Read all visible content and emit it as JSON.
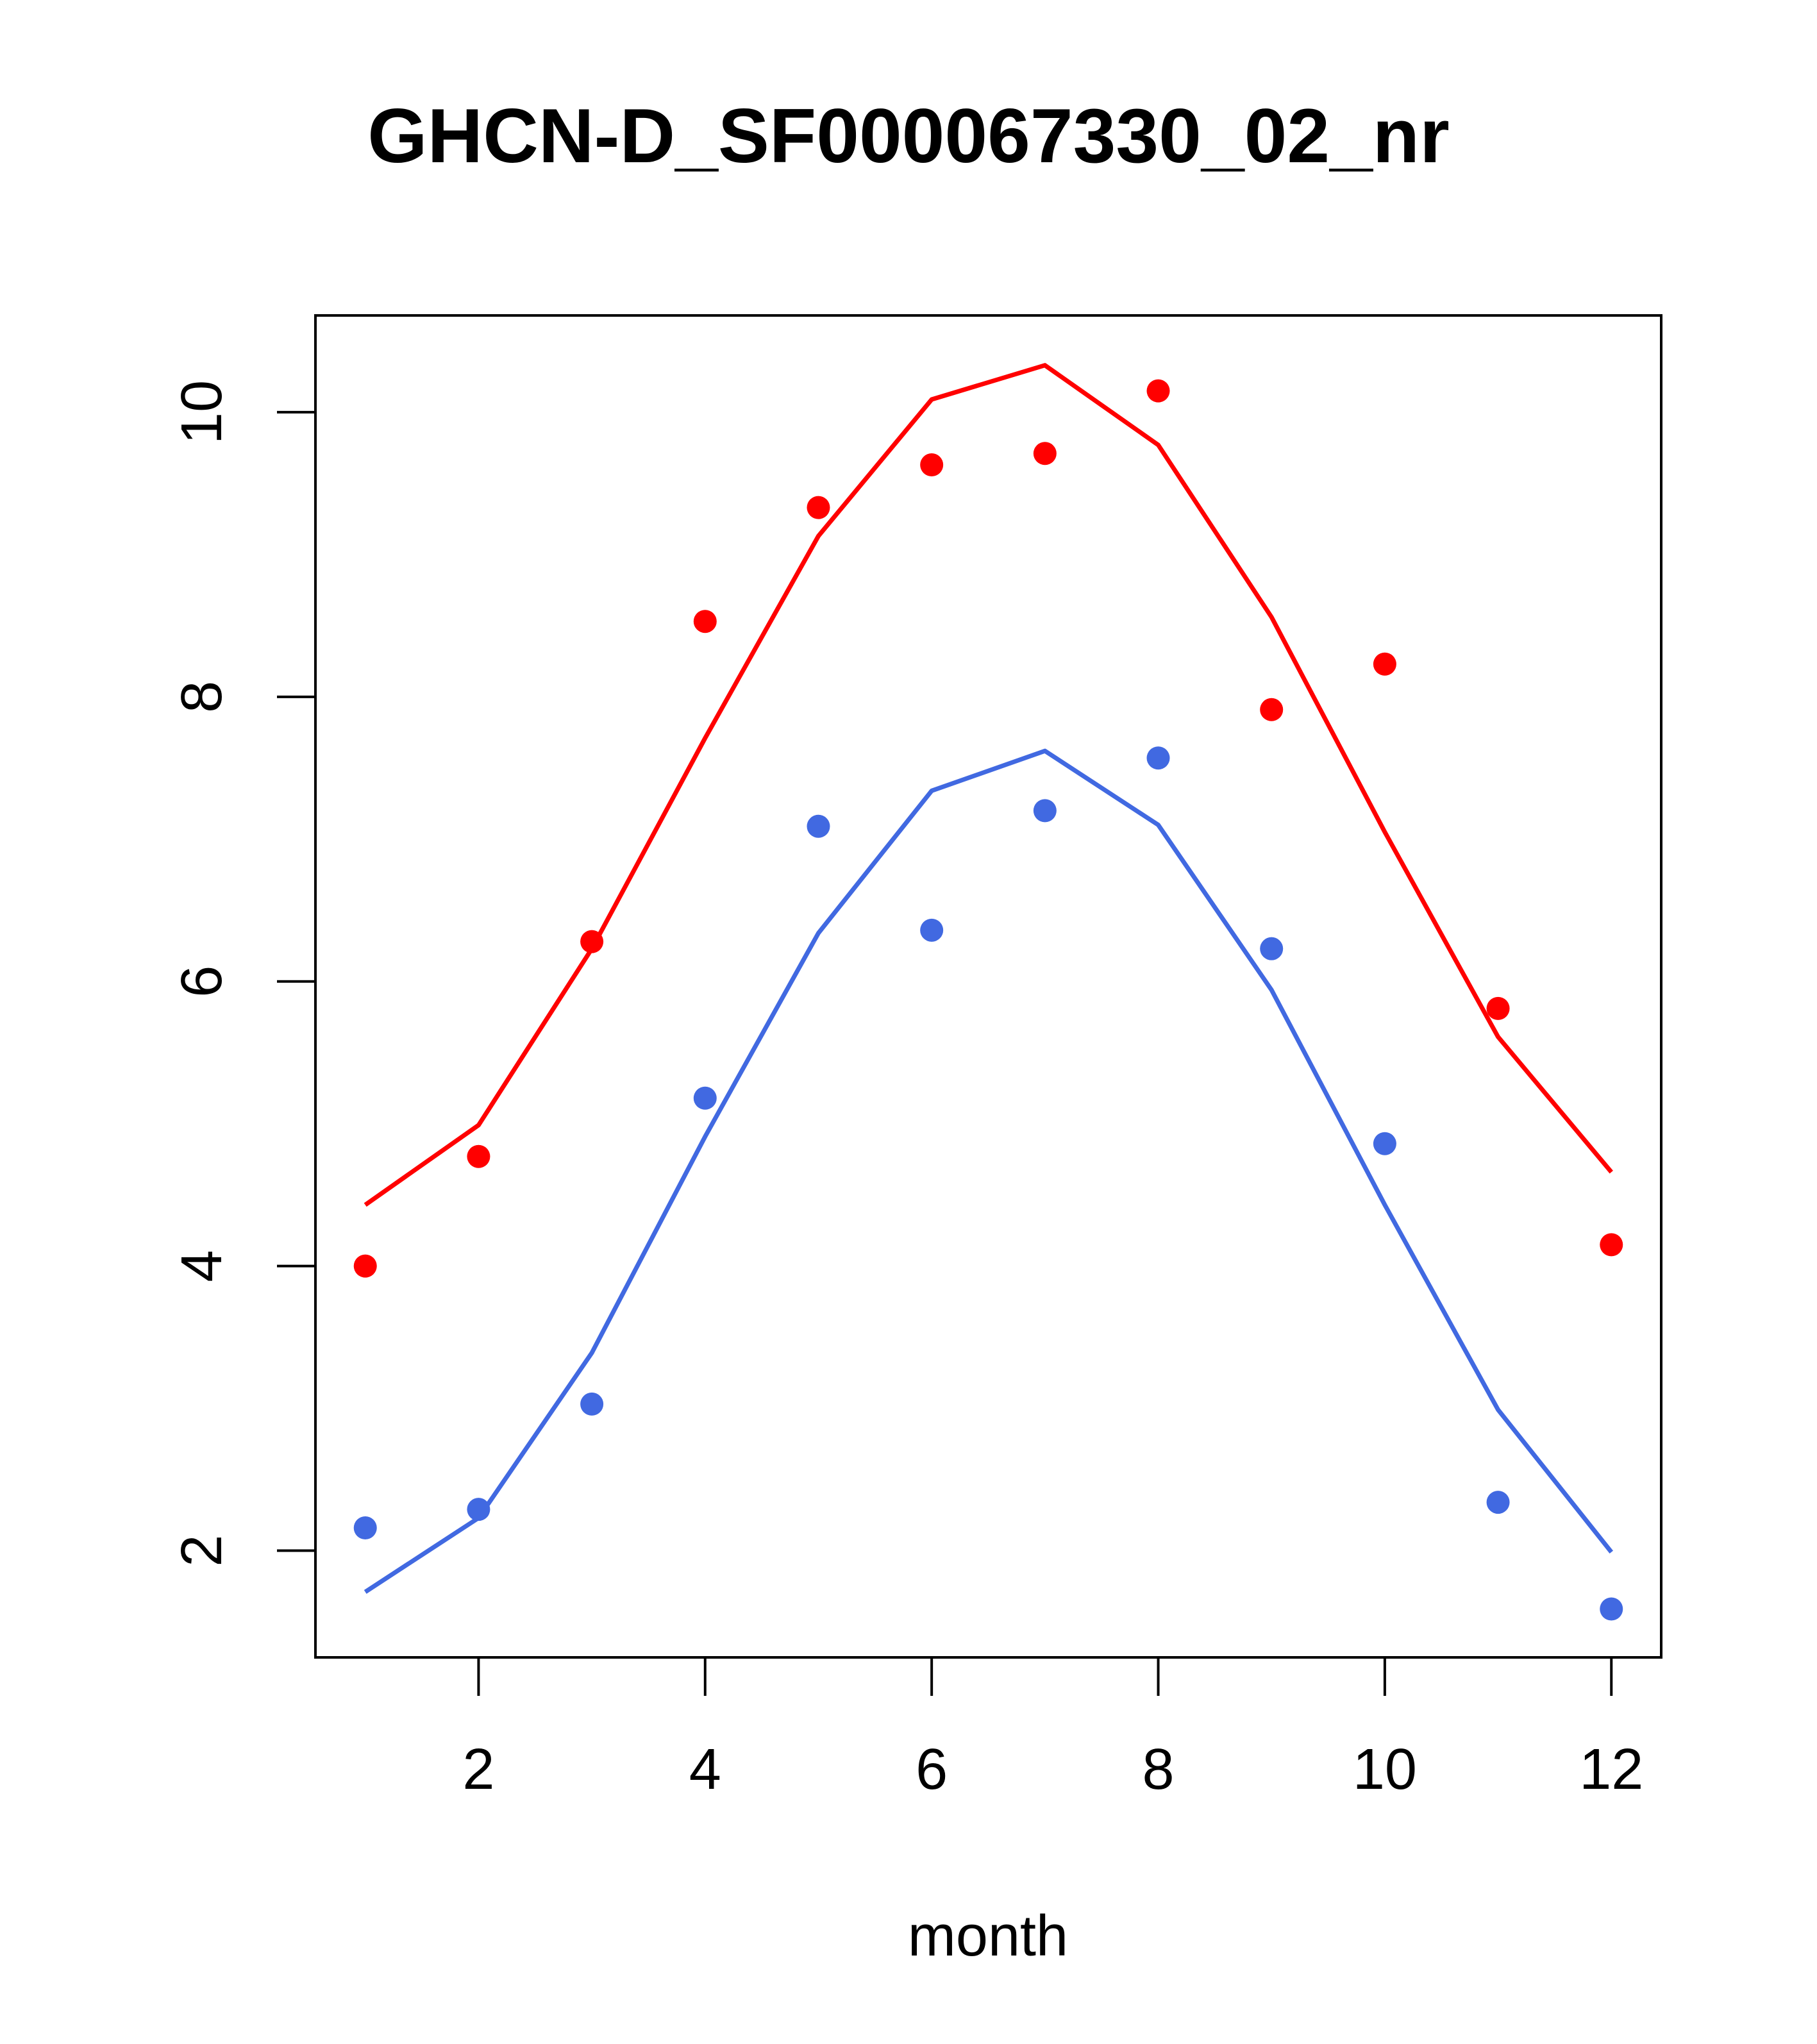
{
  "chart_data": {
    "type": "scatter",
    "title": "GHCN-D_SF000067330_02_nr",
    "xlabel": "month",
    "ylabel": "",
    "xlim": [
      0.56,
      12.44
    ],
    "ylim": [
      1.25,
      10.68
    ],
    "xticks": [
      2,
      4,
      6,
      8,
      10,
      12
    ],
    "yticks": [
      2,
      4,
      6,
      8,
      10
    ],
    "grid": false,
    "x": [
      1,
      2,
      3,
      4,
      5,
      6,
      7,
      8,
      9,
      10,
      11,
      12
    ],
    "series": [
      {
        "color": "#ff0000",
        "points": [
          4.0,
          4.77,
          6.28,
          8.53,
          9.33,
          9.63,
          9.71,
          10.15,
          7.91,
          8.23,
          5.81,
          4.15
        ],
        "line": [
          4.43,
          4.99,
          6.23,
          7.71,
          9.13,
          10.09,
          10.33,
          9.77,
          8.56,
          7.05,
          5.61,
          4.66
        ]
      },
      {
        "color": "#4169e1",
        "points": [
          2.16,
          2.29,
          3.03,
          5.18,
          7.09,
          6.36,
          7.2,
          7.57,
          6.23,
          4.86,
          2.34,
          1.59
        ],
        "line": [
          1.71,
          2.23,
          3.39,
          4.91,
          6.34,
          7.34,
          7.62,
          7.1,
          5.94,
          4.43,
          2.99,
          1.99
        ]
      }
    ]
  }
}
